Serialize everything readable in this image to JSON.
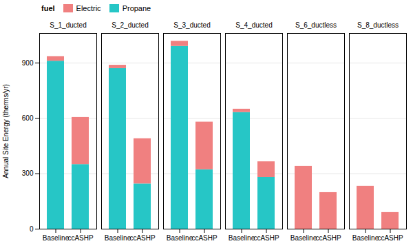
{
  "chart_data": {
    "type": "bar",
    "stacked": true,
    "grid": true,
    "ylabel": "Annual Site Energy (therms/yr)",
    "legend_title": "fuel",
    "categories": [
      "Baseline",
      "ccASHP"
    ],
    "ylim": [
      0,
      1060
    ],
    "yticks": [
      0,
      300,
      600,
      900
    ],
    "facets": [
      {
        "title": "S_1_ducted",
        "series": [
          {
            "name": "Propane",
            "color": "#26C6C6",
            "values": [
              910,
              350
            ]
          },
          {
            "name": "Electric",
            "color": "#F08080",
            "values": [
              25,
              255
            ]
          }
        ]
      },
      {
        "title": "S_2_ducted",
        "series": [
          {
            "name": "Propane",
            "color": "#26C6C6",
            "values": [
              870,
              245
            ]
          },
          {
            "name": "Electric",
            "color": "#F08080",
            "values": [
              18,
              245
            ]
          }
        ]
      },
      {
        "title": "S_3_ducted",
        "series": [
          {
            "name": "Propane",
            "color": "#26C6C6",
            "values": [
              990,
              322
            ]
          },
          {
            "name": "Electric",
            "color": "#F08080",
            "values": [
              28,
              258
            ]
          }
        ]
      },
      {
        "title": "S_4_ducted",
        "series": [
          {
            "name": "Propane",
            "color": "#26C6C6",
            "values": [
              632,
              280
            ]
          },
          {
            "name": "Electric",
            "color": "#F08080",
            "values": [
              18,
              85
            ]
          }
        ]
      },
      {
        "title": "S_6_ductless",
        "series": [
          {
            "name": "Propane",
            "color": "#26C6C6",
            "values": [
              0,
              0
            ]
          },
          {
            "name": "Electric",
            "color": "#F08080",
            "values": [
              340,
              198
            ]
          }
        ]
      },
      {
        "title": "S_8_ductless",
        "series": [
          {
            "name": "Propane",
            "color": "#26C6C6",
            "values": [
              0,
              0
            ]
          },
          {
            "name": "Electric",
            "color": "#F08080",
            "values": [
              232,
              90
            ]
          }
        ]
      }
    ]
  }
}
